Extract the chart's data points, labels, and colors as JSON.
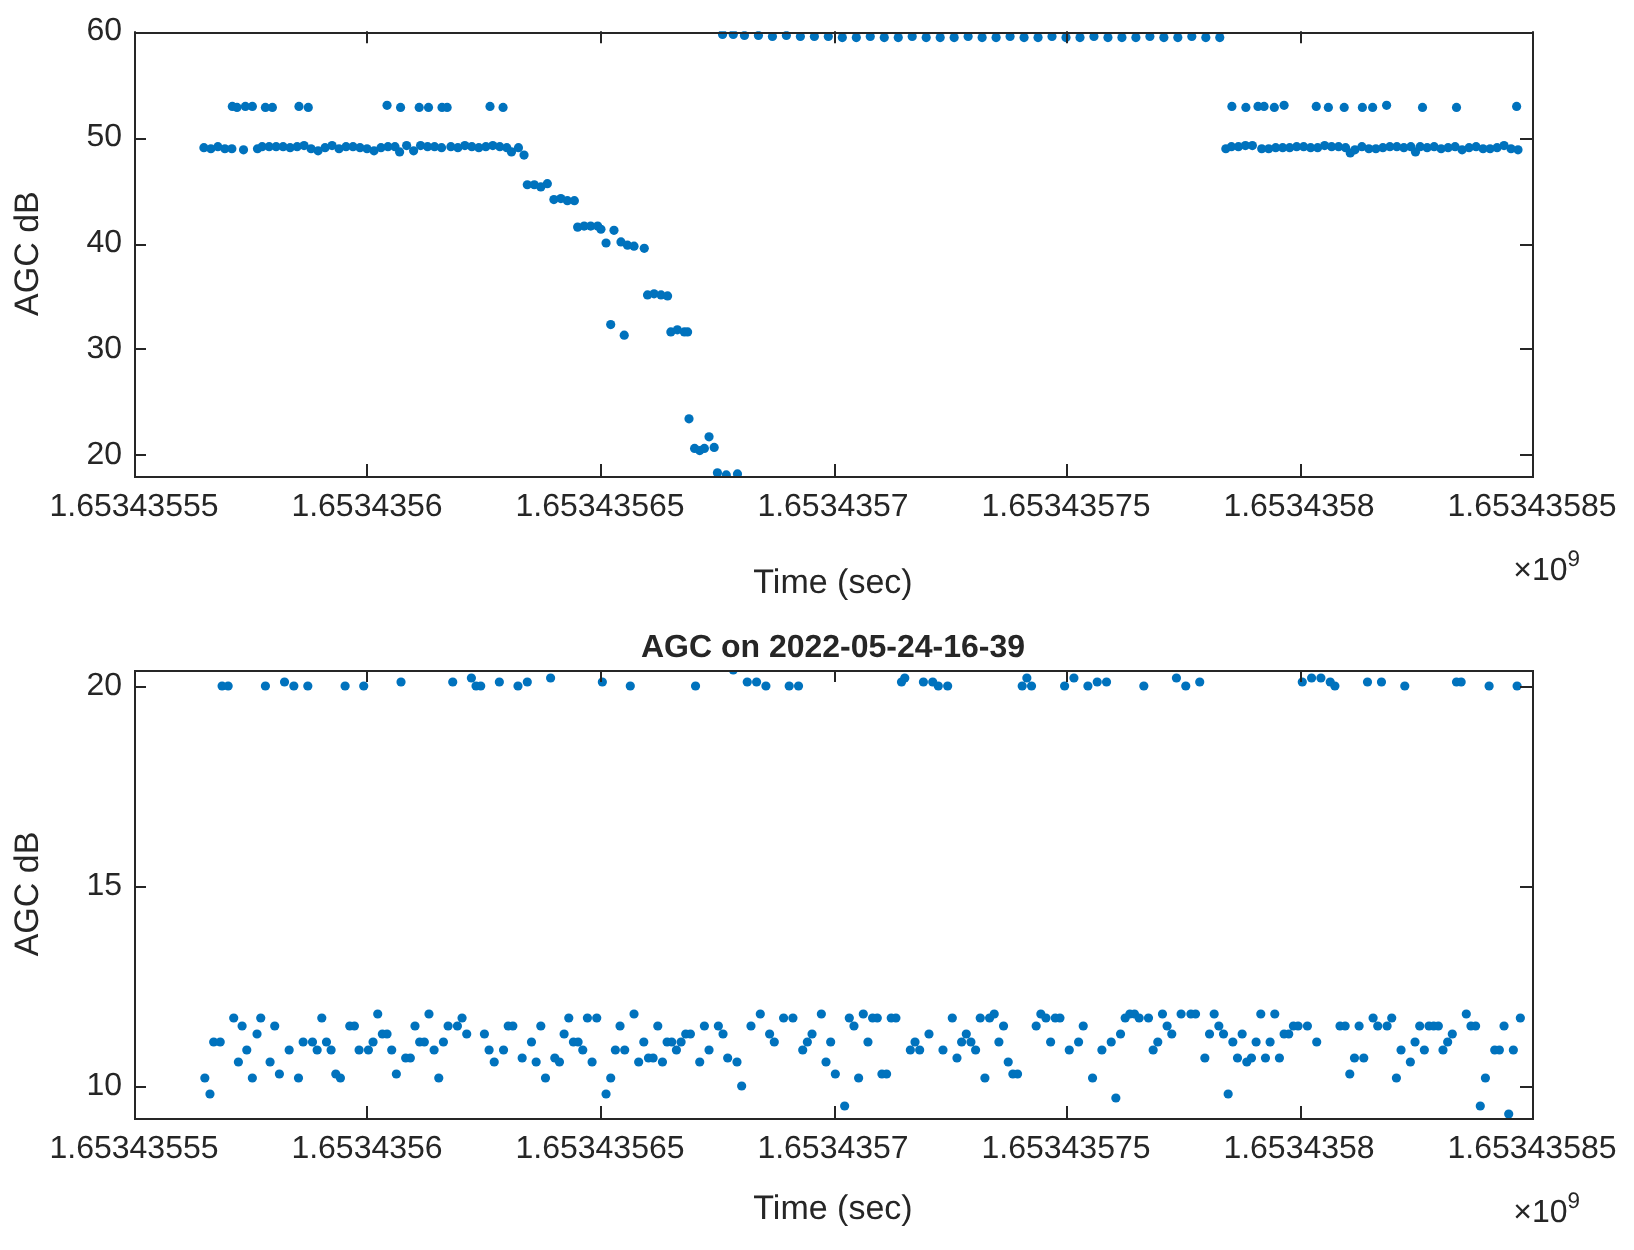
{
  "chart_data": [
    {
      "type": "scatter",
      "xlabel": "Time (sec)",
      "ylabel": "AGC dB",
      "annotations": [
        "×10$^{9}$"
      ],
      "marker": "circle",
      "xlim": [
        1.65343555,
        1.65343585
      ],
      "xticks": [
        1.65343555,
        1.6534356,
        1.65343565,
        1.6534357,
        1.65343575,
        1.6534358,
        1.65343585
      ],
      "ylim": [
        18,
        60
      ],
      "yticks": [
        20,
        30,
        40,
        50,
        60
      ],
      "series": [
        {
          "color": "#0072bd",
          "x": [
            1.653435565,
            1.6534355665,
            1.653435568,
            1.6534355695,
            1.653435571,
            1.6534355735,
            1.6534355765,
            1.6534355775,
            1.653435579,
            1.6534355805,
            1.653435582,
            1.6534355835,
            1.653435585,
            1.6534355865,
            1.653435588,
            1.6534355895,
            1.653435591,
            1.6534355925,
            1.653435594,
            1.6534355955,
            1.653435597,
            1.6534355985,
            1.6534356,
            1.6534356015,
            1.653435603,
            1.6534356045,
            1.653435606,
            1.653435607,
            1.6534356085,
            1.65343561,
            1.6534356115,
            1.653435613,
            1.6534356145,
            1.653435616,
            1.653435618,
            1.6534356195,
            1.653435621,
            1.6534356225,
            1.653435624,
            1.6534356255,
            1.653435627,
            1.6534356285,
            1.65343563,
            1.653435631,
            1.6534356325,
            1.6534356337,
            1.6534355711,
            1.6534355721,
            1.6534355739,
            1.6534355754,
            1.6534355782,
            1.6534355797,
            1.6534355854,
            1.6534355874,
            1.6534356043,
            1.6534356072,
            1.6534356112,
            1.6534356132,
            1.6534356161,
            1.6534356172,
            1.6534356264,
            1.6534356292,
            1.6534356344,
            1.6534356359,
            1.6534356373,
            1.6534356387,
            1.6534356401,
            1.6534356416,
            1.653435643,
            1.6534356445,
            1.6534356452,
            1.6534356466,
            1.653435648,
            1.6534356495,
            1.6534356502,
            1.6534356513,
            1.6534356523,
            1.653435653,
            1.6534356545,
            1.6534356552,
            1.6534356559,
            1.6534356573,
            1.6534356595,
            1.6534356602,
            1.6534356616,
            1.6534356631,
            1.6534356645,
            1.6534356652,
            1.6534356666,
            1.6534356681,
            1.6534356688,
            1.6534356691,
            1.6534356703,
            1.6534356714,
            1.6534356724,
            1.6534356734,
            1.6534356745,
            1.6534356752,
            1.6534356771,
            1.6534356795,
            1.6534356763,
            1.6534356786,
            1.653435681,
            1.653435684,
            1.653435687,
            1.65343569,
            1.653435693,
            1.653435696,
            1.653435699,
            1.653435702,
            1.653435705,
            1.653435708,
            1.653435711,
            1.653435714,
            1.653435717,
            1.65343572,
            1.653435723,
            1.653435726,
            1.653435729,
            1.653435732,
            1.653435735,
            1.653435738,
            1.653435741,
            1.653435744,
            1.653435747,
            1.65343575,
            1.653435753,
            1.653435756,
            1.653435759,
            1.653435762,
            1.653435765,
            1.653435768,
            1.653435771,
            1.653435774,
            1.653435777,
            1.65343578,
            1.653435783,
            1.6534357843,
            1.6534357855,
            1.653435787,
            1.6534357885,
            1.65343579,
            1.653435792,
            1.6534357935,
            1.653435795,
            1.6534357965,
            1.653435798,
            1.6534357995,
            1.653435801,
            1.6534358025,
            1.653435804,
            1.6534358055,
            1.653435807,
            1.6534358085,
            1.65343581,
            1.653435811,
            1.653435812,
            1.6534358135,
            1.653435815,
            1.6534358165,
            1.653435818,
            1.6534358195,
            1.653435821,
            1.6534358225,
            1.653435824,
            1.653435825,
            1.653435826,
            1.6534358275,
            1.653435829,
            1.6534358305,
            1.653435832,
            1.6534358335,
            1.653435835,
            1.6534358365,
            1.653435838,
            1.6534358395,
            1.653435841,
            1.6534358425,
            1.653435844,
            1.6534358455,
            1.653435847,
            1.6534357856,
            1.6534357886,
            1.6534357912,
            1.6534357925,
            1.6534357947,
            1.6534357968,
            1.6534358037,
            1.6534358063,
            1.6534358097,
            1.6534358136,
            1.6534358158,
            1.6534358188,
            1.6534358265,
            1.6534358338,
            1.6534358467
          ],
          "values": [
            49.0,
            48.9,
            49.1,
            48.9,
            48.9,
            48.8,
            48.9,
            49.1,
            49.1,
            49.1,
            49.1,
            49.0,
            49.1,
            49.2,
            48.9,
            48.7,
            49.0,
            49.2,
            48.9,
            49.1,
            49.1,
            49.0,
            48.9,
            48.7,
            49.0,
            49.1,
            49.1,
            48.6,
            49.2,
            48.7,
            49.2,
            49.1,
            49.1,
            49.0,
            49.1,
            49.0,
            49.2,
            49.1,
            49.0,
            49.1,
            49.2,
            49.1,
            49.0,
            48.6,
            49.0,
            48.3,
            52.9,
            52.8,
            52.9,
            52.9,
            52.8,
            52.8,
            52.9,
            52.8,
            53.0,
            52.8,
            52.8,
            52.8,
            52.8,
            52.8,
            52.9,
            52.8,
            45.5,
            45.5,
            45.3,
            45.6,
            44.1,
            44.2,
            44.0,
            44.0,
            41.5,
            41.6,
            41.6,
            41.6,
            41.3,
            40.0,
            32.3,
            41.2,
            40.1,
            31.3,
            39.8,
            39.7,
            39.5,
            35.1,
            35.2,
            35.1,
            35.0,
            31.6,
            31.8,
            31.6,
            31.6,
            23.4,
            20.6,
            20.4,
            20.6,
            21.7,
            20.7,
            18.3,
            18.1,
            18.2,
            59.7,
            59.7,
            59.6,
            59.6,
            59.5,
            59.6,
            59.5,
            59.5,
            59.5,
            59.4,
            59.4,
            59.5,
            59.4,
            59.4,
            59.5,
            59.4,
            59.4,
            59.4,
            59.5,
            59.4,
            59.4,
            59.5,
            59.4,
            59.4,
            59.5,
            59.4,
            59.4,
            59.5,
            59.4,
            59.4,
            59.4,
            59.5,
            59.4,
            59.4,
            59.5,
            59.4,
            59.4,
            48.9,
            49.1,
            49.1,
            49.2,
            49.2,
            48.9,
            48.9,
            49.0,
            49.0,
            49.0,
            49.1,
            49.1,
            49.0,
            49.0,
            49.2,
            49.1,
            49.1,
            49.0,
            48.5,
            48.8,
            49.1,
            48.9,
            48.9,
            49.0,
            49.1,
            49.1,
            49.0,
            49.1,
            48.6,
            49.1,
            49.0,
            49.1,
            48.9,
            49.0,
            49.1,
            48.8,
            49.0,
            49.1,
            48.9,
            48.9,
            49.0,
            49.2,
            48.9,
            48.8,
            52.9,
            52.8,
            52.9,
            52.9,
            52.8,
            53.0,
            52.9,
            52.8,
            52.8,
            52.8,
            52.8,
            53.0,
            52.8,
            52.8,
            52.9
          ]
        }
      ]
    },
    {
      "type": "scatter",
      "title": "AGC on 2022-05-24-16-39",
      "xlabel": "Time (sec)",
      "ylabel": "AGC dB",
      "annotations": [
        "×10$^{9}$"
      ],
      "marker": "circle",
      "xlim": [
        1.65343555,
        1.65343585
      ],
      "xticks": [
        1.65343555,
        1.6534356,
        1.65343565,
        1.6534357,
        1.65343575,
        1.6534358,
        1.65343585
      ],
      "ylim": [
        9.2,
        20.4
      ],
      "yticks": [
        10,
        15,
        20
      ],
      "series": [
        {
          "color": "#0072bd",
          "x": [
            1.6534355652,
            1.6534355663,
            1.6534355671,
            1.6534355685,
            1.6534355714,
            1.6534355724,
            1.6534355732,
            1.6534355742,
            1.6534355754,
            1.6534355764,
            1.6534355772,
            1.6534355792,
            1.6534355802,
            1.6534355812,
            1.6534355833,
            1.6534355853,
            1.6534355863,
            1.6534355883,
            1.6534355893,
            1.6534355903,
            1.6534355913,
            1.6534355923,
            1.6534355933,
            1.6534355943,
            1.6534355963,
            1.6534355973,
            1.6534355983,
            1.6534356003,
            1.6534356013,
            1.6534356023,
            1.6534356033,
            1.6534356043,
            1.6534356053,
            1.6534356063,
            1.6534356083,
            1.6534356093,
            1.6534356103,
            1.6534356113,
            1.6534356123,
            1.6534356133,
            1.6534356144,
            1.6534356154,
            1.6534356164,
            1.6534356174,
            1.6534356194,
            1.6534356204,
            1.6534356214,
            1.6534356252,
            1.6534356262,
            1.6534356273,
            1.6534356293,
            1.6534356303,
            1.6534356313,
            1.6534356333,
            1.6534356353,
            1.6534356363,
            1.6534356373,
            1.6534356383,
            1.6534356403,
            1.6534356413,
            1.6534356423,
            1.6534356433,
            1.6534356443,
            1.6534356453,
            1.6534356463,
            1.6534356473,
            1.6534356483,
            1.6534356493,
            1.6534356513,
            1.6534356523,
            1.6534356533,
            1.6534356543,
            1.6534356553,
            1.6534356573,
            1.6534356583,
            1.6534356594,
            1.6534356604,
            1.6534356614,
            1.6534356624,
            1.6534356634,
            1.6534356644,
            1.6534356654,
            1.6534356664,
            1.6534356674,
            1.6534356684,
            1.6534356694,
            1.6534356714,
            1.6534356724,
            1.6534356734,
            1.6534356754,
            1.6534356764,
            1.6534356774,
            1.6534356794,
            1.6534356804,
            1.6534356824,
            1.6534356844,
            1.6534356864,
            1.6534356874,
            1.6534356894,
            1.6534356914,
            1.6534356935,
            1.6534356945,
            1.6534356955,
            1.6534356975,
            1.6534356985,
            1.6534356995,
            1.6534357005,
            1.6534355689,
            1.6534355702,
            1.6534355782,
            1.6534355823,
            1.6534355843,
            1.6534355873,
            1.6534355953,
            1.6534355993,
            1.6534356073,
            1.6534356184,
            1.6534356224,
            1.6534356234,
            1.6534356244,
            1.6534356284,
            1.6534356324,
            1.6534356344,
            1.6534356394,
            1.6534356505,
            1.6534356565,
            1.6534356705,
            1.6534356786,
            1.6534356816,
            1.6534356836,
            1.6534356856,
            1.6534356906,
            1.6534356926,
            1.6534357025,
            1.6534357035,
            1.6534357045,
            1.6534357055,
            1.6534357065,
            1.6534357075,
            1.6534357085,
            1.6534357095,
            1.6534357105,
            1.6534357115,
            1.6534357125,
            1.6534357135,
            1.6534357166,
            1.6534357176,
            1.6534357186,
            1.6534357206,
            1.6534357236,
            1.6534357256,
            1.6534357266,
            1.6534357276,
            1.6534357286,
            1.6534357296,
            1.6534357306,
            1.6534357316,
            1.6534357326,
            1.6534357336,
            1.6534357346,
            1.6534357356,
            1.6534357366,
            1.6534357376,
            1.6534357386,
            1.6534357396,
            1.6534357436,
            1.6534357446,
            1.6534357457,
            1.6534357467,
            1.6534357477,
            1.6534357487,
            1.6534357507,
            1.6534357527,
            1.6534357537,
            1.6534357557,
            1.6534357577,
            1.6534357597,
            1.6534357607,
            1.6534357617,
            1.6534357627,
            1.6534357637,
            1.6534357647,
            1.6534357657,
            1.6534357677,
            1.6534357687,
            1.6534357697,
            1.6534357707,
            1.6534357717,
            1.6534357727,
            1.6534357747,
            1.6534357768,
            1.6534357778,
            1.6534357798,
            1.6534357808,
            1.6534357818,
            1.6534357828,
            1.6534357838,
            1.6534357848,
            1.6534357858,
            1.6534357868,
            1.6534357878,
            1.6534357888,
            1.6534357898,
            1.6534357908,
            1.6534357918,
            1.6534357928,
            1.6534357938,
            1.6534357948,
            1.6534357958,
            1.6534357968,
            1.6534357978,
            1.6534357988,
            1.6534357998,
            1.6534358018,
            1.6534358038,
            1.6534358088,
            1.6534358099,
            1.6534358109,
            1.6534358119,
            1.6534358129,
            1.6534358139,
            1.6534358159,
            1.6534358169,
            1.6534358189,
            1.6534358199,
            1.6534358209,
            1.6534358219,
            1.6534358239,
            1.6534358249,
            1.6534358259,
            1.6534358269,
            1.6534358279,
            1.6534358289,
            1.6534358299,
            1.6534358309,
            1.6534358319,
            1.6534358329,
            1.6534358359,
            1.6534358369,
            1.6534358379,
            1.6534358389,
            1.65343584,
            1.653435842,
            1.653435843,
            1.653435844,
            1.653435845,
            1.653435846,
            1.6534358475,
            1.6534357147,
            1.6534357154,
            1.6534357194,
            1.6534357214,
            1.6534357226,
            1.6534357246,
            1.6534357406,
            1.6534357416,
            1.6534357426,
            1.6534357497,
            1.6534357517,
            1.6534357547,
            1.6534357567,
            1.6534357587,
            1.6534357667,
            1.6534357737,
            1.6534357757,
            1.6534357787,
            1.6534358007,
            1.6534358027,
            1.6534358047,
            1.6534358067,
            1.6534358077,
            1.6534358147,
            1.6534358177,
            1.6534358227,
            1.6534358338,
            1.6534358348,
            1.6534358408,
            1.6534358468
          ],
          "values": [
            10.2,
            9.8,
            11.1,
            11.1,
            11.7,
            10.6,
            11.5,
            10.9,
            10.2,
            11.3,
            11.7,
            10.6,
            11.5,
            10.3,
            10.9,
            10.2,
            11.1,
            11.1,
            10.9,
            11.7,
            11.1,
            10.9,
            10.3,
            10.2,
            11.5,
            11.5,
            10.9,
            10.9,
            11.1,
            11.8,
            11.3,
            11.3,
            10.9,
            10.3,
            10.7,
            10.7,
            11.5,
            11.1,
            11.1,
            11.8,
            10.9,
            10.2,
            11.1,
            11.5,
            11.5,
            11.7,
            11.3,
            11.3,
            10.9,
            10.6,
            10.9,
            11.5,
            11.5,
            10.7,
            11.1,
            10.6,
            11.5,
            10.2,
            10.7,
            10.6,
            11.3,
            11.7,
            11.1,
            11.1,
            10.9,
            11.7,
            10.6,
            11.7,
            9.8,
            10.2,
            10.9,
            11.5,
            10.9,
            11.8,
            10.6,
            11.1,
            10.7,
            10.7,
            11.5,
            10.6,
            11.1,
            11.1,
            10.9,
            11.1,
            11.3,
            11.3,
            10.6,
            11.5,
            10.9,
            11.5,
            11.3,
            10.7,
            10.6,
            10.0,
            11.5,
            11.8,
            11.3,
            11.1,
            11.7,
            11.7,
            10.9,
            11.1,
            11.3,
            11.8,
            10.6,
            11.1,
            10.3,
            20.0,
            20.0,
            20.0,
            20.1,
            20.0,
            20.0,
            20.0,
            20.0,
            20.1,
            20.1,
            20.2,
            20.0,
            20.0,
            20.1,
            20.0,
            20.1,
            20.2,
            20.1,
            20.0,
            20.0,
            20.4,
            20.1,
            20.1,
            20.0,
            20.0,
            20.0,
            9.5,
            11.7,
            11.5,
            10.2,
            11.8,
            11.1,
            11.7,
            11.7,
            10.3,
            10.3,
            11.7,
            11.7,
            10.9,
            11.1,
            10.9,
            11.3,
            10.9,
            11.7,
            10.7,
            11.1,
            11.3,
            11.1,
            10.9,
            11.7,
            10.2,
            11.7,
            11.8,
            11.1,
            11.5,
            10.6,
            10.3,
            10.3,
            11.5,
            11.8,
            11.7,
            11.1,
            11.7,
            11.7,
            10.9,
            11.1,
            11.5,
            10.2,
            10.9,
            11.1,
            9.7,
            11.3,
            11.7,
            11.8,
            11.8,
            11.7,
            11.7,
            10.9,
            11.1,
            11.8,
            11.5,
            11.3,
            11.8,
            11.8,
            11.8,
            10.7,
            11.3,
            11.8,
            11.5,
            11.3,
            9.8,
            11.1,
            10.7,
            11.3,
            10.6,
            10.7,
            11.1,
            11.8,
            10.7,
            11.1,
            11.8,
            10.7,
            11.3,
            11.3,
            11.5,
            11.5,
            11.5,
            11.1,
            11.5,
            11.5,
            10.3,
            10.7,
            11.5,
            10.7,
            11.7,
            11.5,
            11.5,
            11.7,
            10.2,
            10.9,
            10.6,
            11.1,
            11.5,
            10.9,
            11.5,
            11.5,
            11.5,
            10.9,
            11.1,
            11.3,
            11.8,
            11.5,
            11.5,
            9.5,
            10.2,
            10.9,
            10.9,
            11.5,
            9.3,
            10.9,
            11.7,
            20.1,
            20.2,
            20.1,
            20.1,
            20.0,
            20.0,
            20.0,
            20.2,
            20.0,
            20.0,
            20.2,
            20.0,
            20.1,
            20.1,
            20.0,
            20.2,
            20.0,
            20.1,
            20.1,
            20.2,
            20.2,
            20.1,
            20.0,
            20.1,
            20.1,
            20.0,
            20.1,
            20.1,
            20.0,
            20.0
          ]
        }
      ]
    }
  ]
}
